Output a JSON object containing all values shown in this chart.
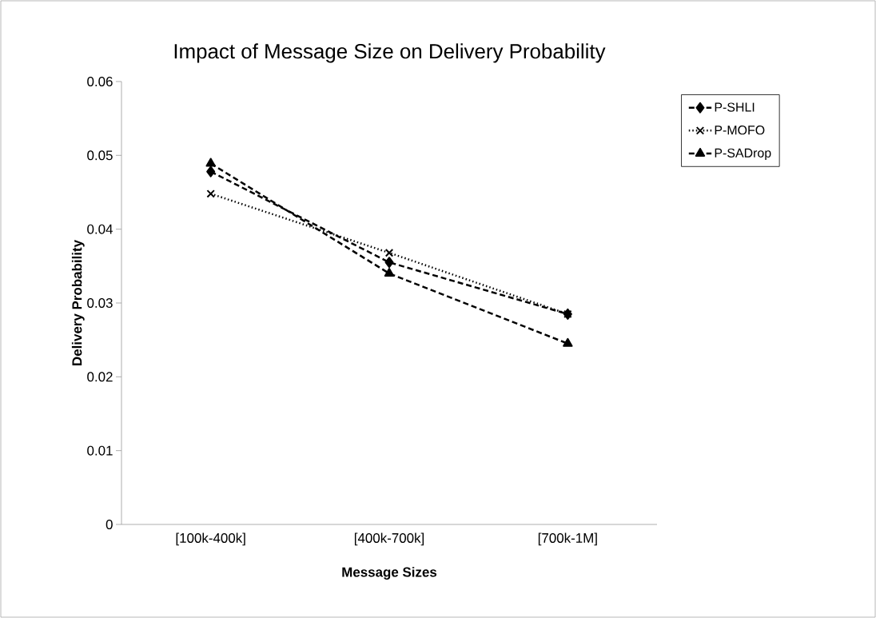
{
  "chart_data": {
    "type": "line",
    "title": "Impact of Message Size on Delivery Probability",
    "xlabel": "Message Sizes",
    "ylabel": "Delivery Probability",
    "categories": [
      "[100k-400k]",
      "[400k-700k]",
      "[700k-1M]"
    ],
    "ylim": [
      0,
      0.06
    ],
    "yticks": [
      0,
      0.01,
      0.02,
      0.03,
      0.04,
      0.05,
      0.06
    ],
    "legend": "right",
    "grid": false,
    "series": [
      {
        "name": "P-SHLI",
        "color": "#000000",
        "marker": "diamond",
        "line_style": "dashed",
        "values": [
          0.0478,
          0.0355,
          0.0285
        ]
      },
      {
        "name": "P-MOFO",
        "color": "#000000",
        "marker": "cross",
        "line_style": "dotted",
        "values": [
          0.0448,
          0.0368,
          0.0285
        ]
      },
      {
        "name": "P-SADrop",
        "color": "#000000",
        "marker": "triangle",
        "line_style": "dashed",
        "values": [
          0.0489,
          0.034,
          0.0245
        ]
      }
    ]
  }
}
